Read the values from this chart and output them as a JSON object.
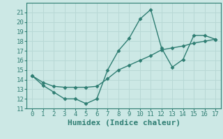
{
  "line1_x": [
    0,
    1,
    2,
    3,
    4,
    5,
    6,
    7,
    8,
    9,
    10,
    11,
    12,
    13,
    14,
    15,
    16,
    17
  ],
  "line1_y": [
    14.4,
    13.4,
    12.7,
    12.0,
    12.0,
    11.5,
    12.0,
    15.0,
    17.0,
    18.3,
    20.3,
    21.3,
    17.3,
    15.3,
    16.1,
    18.6,
    18.6,
    18.2
  ],
  "line2_x": [
    0,
    1,
    2,
    3,
    4,
    5,
    6,
    7,
    8,
    9,
    10,
    11,
    12,
    13,
    14,
    15,
    16,
    17
  ],
  "line2_y": [
    14.4,
    13.7,
    13.3,
    13.2,
    13.2,
    13.2,
    13.3,
    14.1,
    15.0,
    15.5,
    16.0,
    16.5,
    17.1,
    17.3,
    17.5,
    17.8,
    18.0,
    18.2
  ],
  "line_color": "#2e7d72",
  "bg_color": "#cce8e5",
  "grid_color": "#b8d8d5",
  "xlabel": "Humidex (Indice chaleur)",
  "ylim": [
    11,
    22
  ],
  "xlim": [
    -0.5,
    17.5
  ],
  "yticks": [
    11,
    12,
    13,
    14,
    15,
    16,
    17,
    18,
    19,
    20,
    21
  ],
  "xticks": [
    0,
    1,
    2,
    3,
    4,
    5,
    6,
    7,
    8,
    9,
    10,
    11,
    12,
    13,
    14,
    15,
    16,
    17
  ],
  "marker": "D",
  "markersize": 2.5,
  "linewidth": 1.0,
  "xlabel_fontsize": 8,
  "tick_fontsize": 6.5
}
